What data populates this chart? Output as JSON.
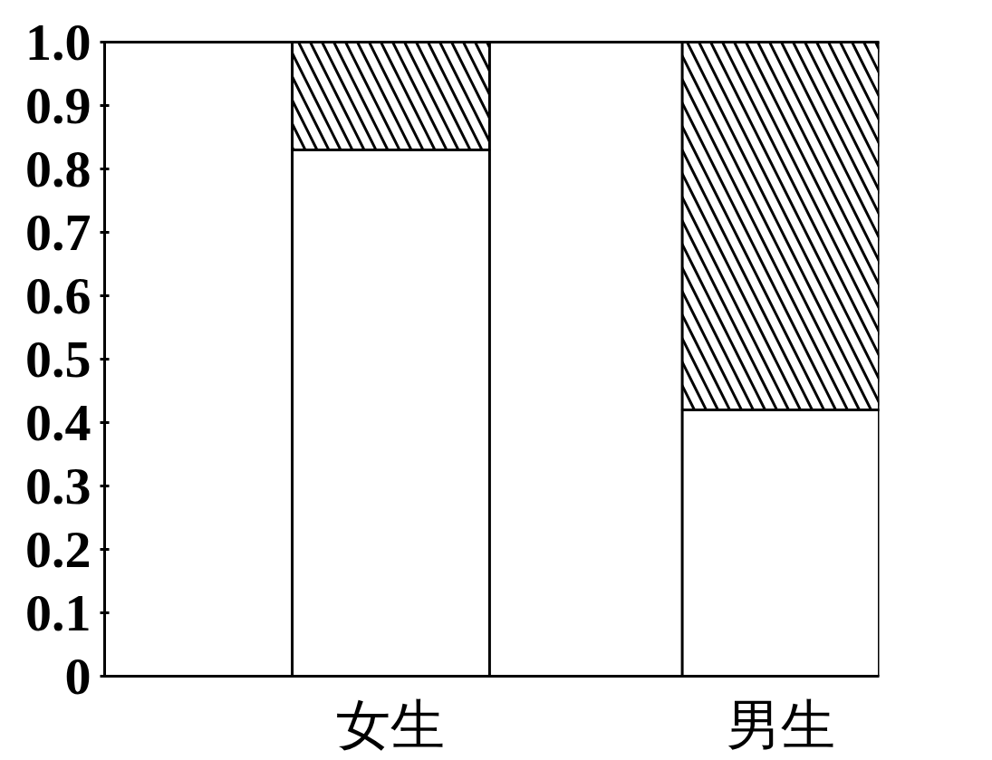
{
  "chart_data": {
    "type": "bar",
    "stacked": true,
    "categories": [
      "女生",
      "男生"
    ],
    "series": [
      {
        "color": "#ffffff",
        "values": [
          0.83,
          0.42
        ]
      },
      {
        "color": "#000000",
        "values": [
          0.17,
          0.58
        ]
      }
    ],
    "ylim": [
      0,
      1
    ],
    "yticks": [
      0,
      0.1,
      0.2,
      0.3,
      0.4,
      0.5,
      0.6,
      0.7,
      0.8,
      0.9,
      {
        "value": 1,
        "label": "1.0"
      }
    ]
  }
}
